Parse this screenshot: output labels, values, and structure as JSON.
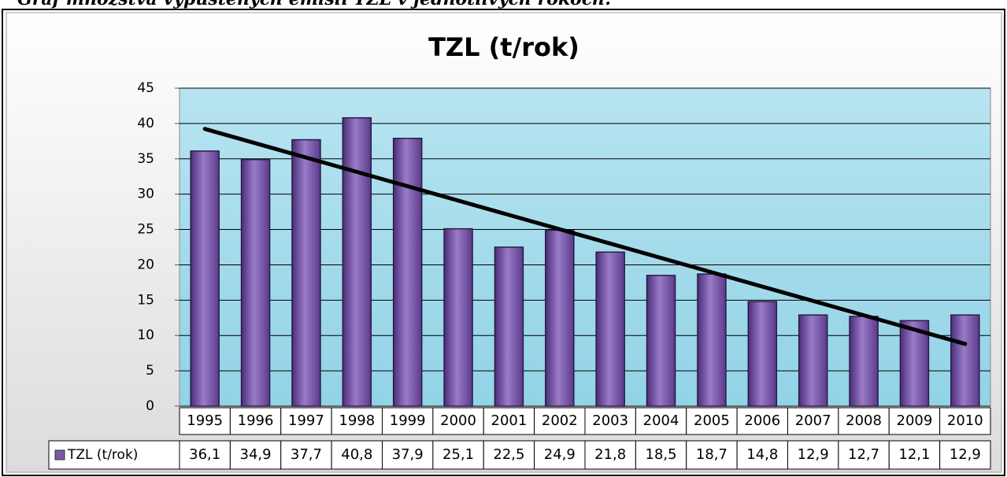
{
  "caption": "Graf množstva vypustených emisií TZL v jednotlivých rokoch.",
  "chart_data": {
    "type": "bar",
    "title": "TZL (t/rok)",
    "categories": [
      "1995",
      "1996",
      "1997",
      "1998",
      "1999",
      "2000",
      "2001",
      "2002",
      "2003",
      "2004",
      "2005",
      "2006",
      "2007",
      "2008",
      "2009",
      "2010"
    ],
    "series": [
      {
        "name": "TZL (t/rok)",
        "color": "#7b5aa6",
        "values": [
          36.1,
          34.9,
          37.7,
          40.8,
          37.9,
          25.1,
          22.5,
          24.9,
          21.8,
          18.5,
          18.7,
          14.8,
          12.9,
          12.7,
          12.1,
          12.9
        ],
        "value_labels": [
          "36,1",
          "34,9",
          "37,7",
          "40,8",
          "37,9",
          "25,1",
          "22,5",
          "24,9",
          "21,8",
          "18,5",
          "18,7",
          "14,8",
          "12,9",
          "12,7",
          "12,1",
          "12,9"
        ]
      }
    ],
    "ylim": [
      0,
      45
    ],
    "yticks": [
      0,
      5,
      10,
      15,
      20,
      25,
      30,
      35,
      40,
      45
    ],
    "grid": true,
    "trendline": "linear",
    "data_table": true
  }
}
